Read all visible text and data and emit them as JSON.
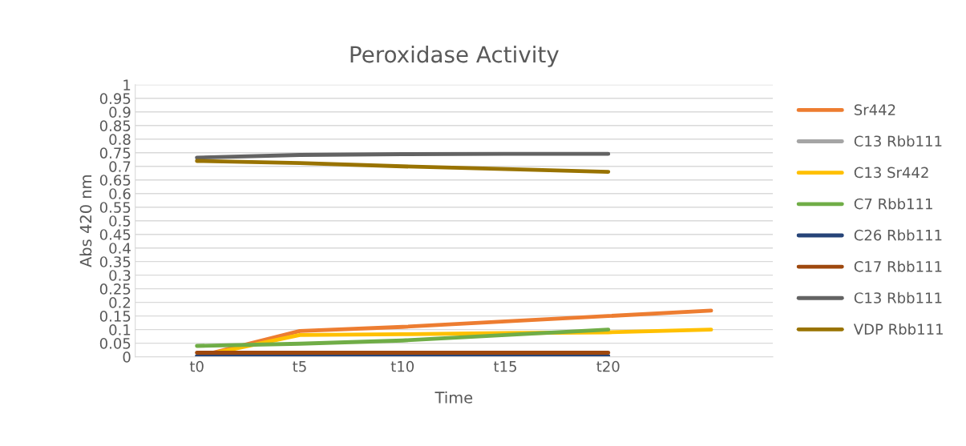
{
  "chart_data": {
    "type": "line",
    "title": "Peroxidase Activity",
    "xlabel": "Time",
    "ylabel": "Abs 420 nm",
    "categories": [
      "t0",
      "t5",
      "t10",
      "t15",
      "t20",
      null
    ],
    "ylim": [
      0,
      1
    ],
    "yticks": [
      0,
      0.05,
      0.1,
      0.15,
      0.2,
      0.25,
      0.3,
      0.35,
      0.4,
      0.45,
      0.5,
      0.55,
      0.6,
      0.65,
      0.7,
      0.75,
      0.8,
      0.85,
      0.9,
      0.95,
      1
    ],
    "grid": "y",
    "legend": "right",
    "marker": "none",
    "line_style": "solid",
    "series": [
      {
        "name": "Sr442",
        "color": "#ed7d31",
        "values": [
          0.0,
          0.095,
          0.11,
          0.13,
          0.15,
          0.17
        ]
      },
      {
        "name": "C13 Rbb111",
        "color": "#a5a5a5",
        "values": [
          null,
          null,
          null,
          null,
          null,
          null
        ]
      },
      {
        "name": "C13 Sr442",
        "color": "#ffc000",
        "values": [
          0.0,
          0.08,
          0.083,
          0.087,
          0.09,
          0.1
        ]
      },
      {
        "name": "C7 Rbb111",
        "color": "#70ad47",
        "values": [
          0.04,
          0.048,
          0.06,
          0.08,
          0.1,
          null
        ]
      },
      {
        "name": "C26 Rbb111",
        "color": "#264478",
        "values": [
          0.003,
          0.003,
          0.003,
          0.003,
          0.003,
          null
        ]
      },
      {
        "name": "C17 Rbb111",
        "color": "#9e480e",
        "values": [
          0.015,
          0.015,
          0.015,
          0.015,
          0.015,
          null
        ]
      },
      {
        "name": "C13 Rbb111",
        "color": "#636363",
        "values": [
          0.732,
          0.742,
          0.745,
          0.746,
          0.746,
          null
        ]
      },
      {
        "name": "VDP Rbb111",
        "color": "#997300",
        "values": [
          0.72,
          0.712,
          0.7,
          0.69,
          0.68,
          null
        ]
      }
    ]
  }
}
